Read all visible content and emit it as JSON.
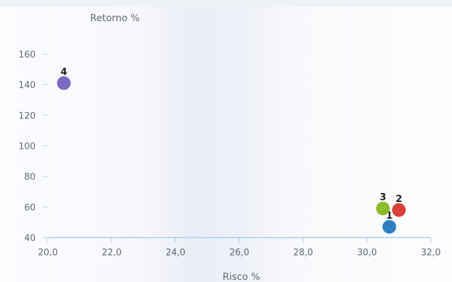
{
  "chart_data": {
    "type": "scatter",
    "title": "",
    "xlabel": "Risco %",
    "ylabel": "Retorno %",
    "xlim": [
      20,
      32
    ],
    "ylim": [
      40,
      160
    ],
    "grid": false,
    "x_ticks": [
      "20,0",
      "22,0",
      "24,0",
      "26,0",
      "28,0",
      "30,0",
      "32,0"
    ],
    "y_ticks": [
      "40",
      "60",
      "80",
      "100",
      "120",
      "140",
      "160"
    ],
    "points": [
      {
        "label": "1",
        "x": 30.7,
        "y": 47,
        "color": "#2f7fc0"
      },
      {
        "label": "2",
        "x": 31.0,
        "y": 58,
        "color": "#d9403a"
      },
      {
        "label": "3",
        "x": 30.5,
        "y": 59,
        "color": "#8cbb2c"
      },
      {
        "label": "4",
        "x": 20.5,
        "y": 141,
        "color": "#7d6bc2"
      }
    ]
  }
}
